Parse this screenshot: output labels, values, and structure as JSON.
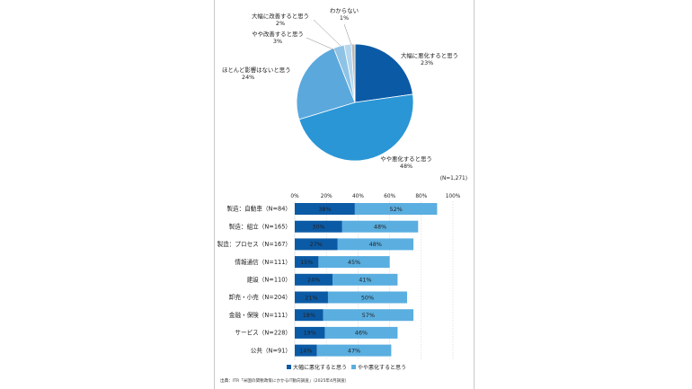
{
  "chart_data": [
    {
      "type": "pie",
      "slices": [
        {
          "label": "大幅に悪化すると思う",
          "value": 23,
          "pct_text": "23%",
          "color": "#0b5aa5"
        },
        {
          "label": "やや悪化すると思う",
          "value": 48,
          "pct_text": "48%",
          "color": "#2a96d6"
        },
        {
          "label": "ほとんど影響はないと思う",
          "value": 24,
          "pct_text": "24%",
          "color": "#5ba8dd"
        },
        {
          "label": "やや改善すると思う",
          "value": 3,
          "pct_text": "3%",
          "color": "#8ec3e6"
        },
        {
          "label": "大幅に改善すると思う",
          "value": 2,
          "pct_text": "2%",
          "color": "#b4d6ee"
        },
        {
          "label": "わからない",
          "value": 1,
          "pct_text": "1%",
          "color": "#b9b9b9"
        }
      ],
      "note": "(N=1,271)"
    },
    {
      "type": "bar",
      "stacked": true,
      "orientation": "horizontal",
      "xlim": [
        0,
        100
      ],
      "x_ticks": [
        "0%",
        "20%",
        "40%",
        "60%",
        "80%",
        "100%"
      ],
      "categories": [
        "製造：自動車（N=84）",
        "製造：組立（N=165）",
        "製造：プロセス（N=167）",
        "情報通信（N=111）",
        "建設（N=110）",
        "卸売・小売（N=204）",
        "金融・保険（N=111）",
        "サービス（N=228）",
        "公共（N=91）"
      ],
      "series": [
        {
          "name": "大幅に悪化すると思う",
          "color": "#0b5aa5",
          "values": [
            38,
            30,
            27,
            15,
            24,
            21,
            18,
            19,
            14
          ],
          "labels": [
            "38%",
            "30%",
            "27%",
            "15%",
            "24%",
            "21%",
            "18%",
            "19%",
            "14%"
          ]
        },
        {
          "name": "やや悪化すると思う",
          "color": "#5aaee0",
          "values": [
            52,
            48,
            48,
            45,
            41,
            50,
            57,
            46,
            47
          ],
          "labels": [
            "52%",
            "48%",
            "48%",
            "45%",
            "41%",
            "50%",
            "57%",
            "46%",
            "47%"
          ]
        }
      ],
      "grid": true,
      "legend": "bottom"
    }
  ],
  "source": "出典：ITR「米国の関税政策にかかるIT動向調査」（2025年4月調査）"
}
